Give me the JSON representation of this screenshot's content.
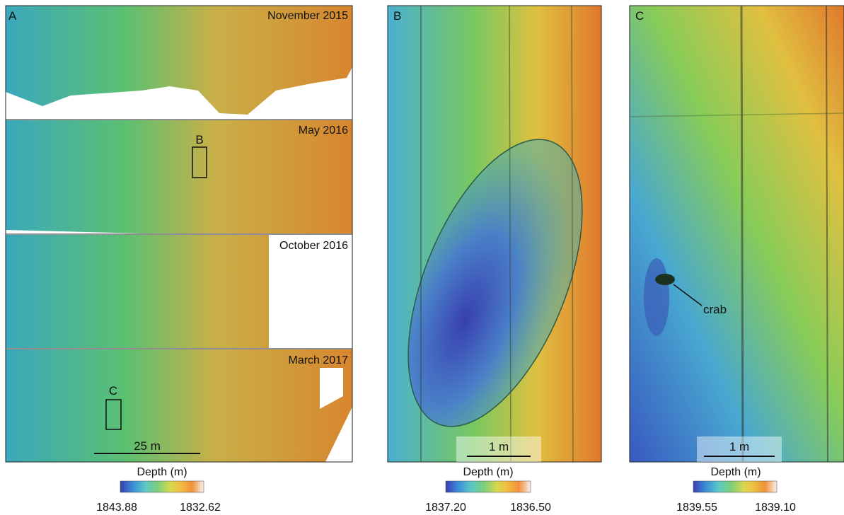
{
  "panel_a": {
    "label": "A",
    "maps": [
      {
        "date": "November 2015"
      },
      {
        "date": "May 2016"
      },
      {
        "date": "October 2016"
      },
      {
        "date": "March 2017"
      }
    ],
    "box_labels": [
      "B",
      "C"
    ],
    "scale_bar": "25 m",
    "colorbar": {
      "title": "Depth (m)",
      "min_label": "1843.88",
      "max_label": "1832.62"
    }
  },
  "panel_b": {
    "label": "B",
    "scale_bar": "1 m",
    "colorbar": {
      "title": "Depth (m)",
      "min_label": "1837.20",
      "max_label": "1836.50"
    }
  },
  "panel_c": {
    "label": "C",
    "scale_bar": "1 m",
    "annotation": "crab",
    "colorbar": {
      "title": "Depth (m)",
      "min_label": "1839.55",
      "max_label": "1839.10"
    }
  }
}
